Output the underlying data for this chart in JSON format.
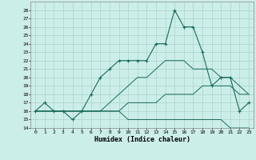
{
  "xlabel": "Humidex (Indice chaleur)",
  "bg_color": "#cceee8",
  "grid_color": "#aad4cc",
  "line_color": "#1a6b5a",
  "xlim": [
    -0.5,
    23.5
  ],
  "ylim": [
    14,
    29
  ],
  "xticks": [
    0,
    1,
    2,
    3,
    4,
    5,
    6,
    7,
    8,
    9,
    10,
    11,
    12,
    13,
    14,
    15,
    16,
    17,
    18,
    19,
    20,
    21,
    22,
    23
  ],
  "yticks": [
    14,
    15,
    16,
    17,
    18,
    19,
    20,
    21,
    22,
    23,
    24,
    25,
    26,
    27,
    28
  ],
  "series": [
    {
      "x": [
        0,
        1,
        2,
        3,
        4,
        5,
        6,
        7,
        8,
        9,
        10,
        11,
        12,
        13,
        14,
        15,
        16,
        17,
        18,
        19,
        20,
        21,
        22,
        23
      ],
      "y": [
        16,
        16,
        16,
        16,
        16,
        16,
        16,
        16,
        16,
        16,
        15,
        15,
        15,
        15,
        15,
        15,
        15,
        15,
        15,
        15,
        15,
        14,
        14,
        14
      ],
      "marker": null,
      "lw": 0.7
    },
    {
      "x": [
        0,
        1,
        2,
        3,
        4,
        5,
        6,
        7,
        8,
        9,
        10,
        11,
        12,
        13,
        14,
        15,
        16,
        17,
        18,
        19,
        20,
        21,
        22,
        23
      ],
      "y": [
        16,
        16,
        16,
        16,
        16,
        16,
        16,
        16,
        16,
        16,
        17,
        17,
        17,
        17,
        18,
        18,
        18,
        18,
        19,
        19,
        19,
        19,
        18,
        18
      ],
      "marker": null,
      "lw": 0.7
    },
    {
      "x": [
        0,
        1,
        2,
        3,
        4,
        5,
        6,
        7,
        8,
        9,
        10,
        11,
        12,
        13,
        14,
        15,
        16,
        17,
        18,
        19,
        20,
        21,
        22,
        23
      ],
      "y": [
        16,
        16,
        16,
        16,
        16,
        16,
        16,
        16,
        17,
        18,
        19,
        20,
        20,
        21,
        22,
        22,
        22,
        21,
        21,
        21,
        20,
        20,
        19,
        18
      ],
      "marker": null,
      "lw": 0.7
    },
    {
      "x": [
        0,
        1,
        2,
        3,
        4,
        5,
        6,
        7,
        8,
        9,
        10,
        11,
        12,
        13,
        14,
        15,
        16,
        17,
        18,
        19,
        20,
        21,
        22,
        23
      ],
      "y": [
        16,
        17,
        16,
        16,
        15,
        16,
        18,
        20,
        21,
        22,
        22,
        22,
        22,
        24,
        24,
        28,
        26,
        26,
        23,
        19,
        20,
        20,
        16,
        17
      ],
      "marker": "+",
      "lw": 0.8
    }
  ]
}
